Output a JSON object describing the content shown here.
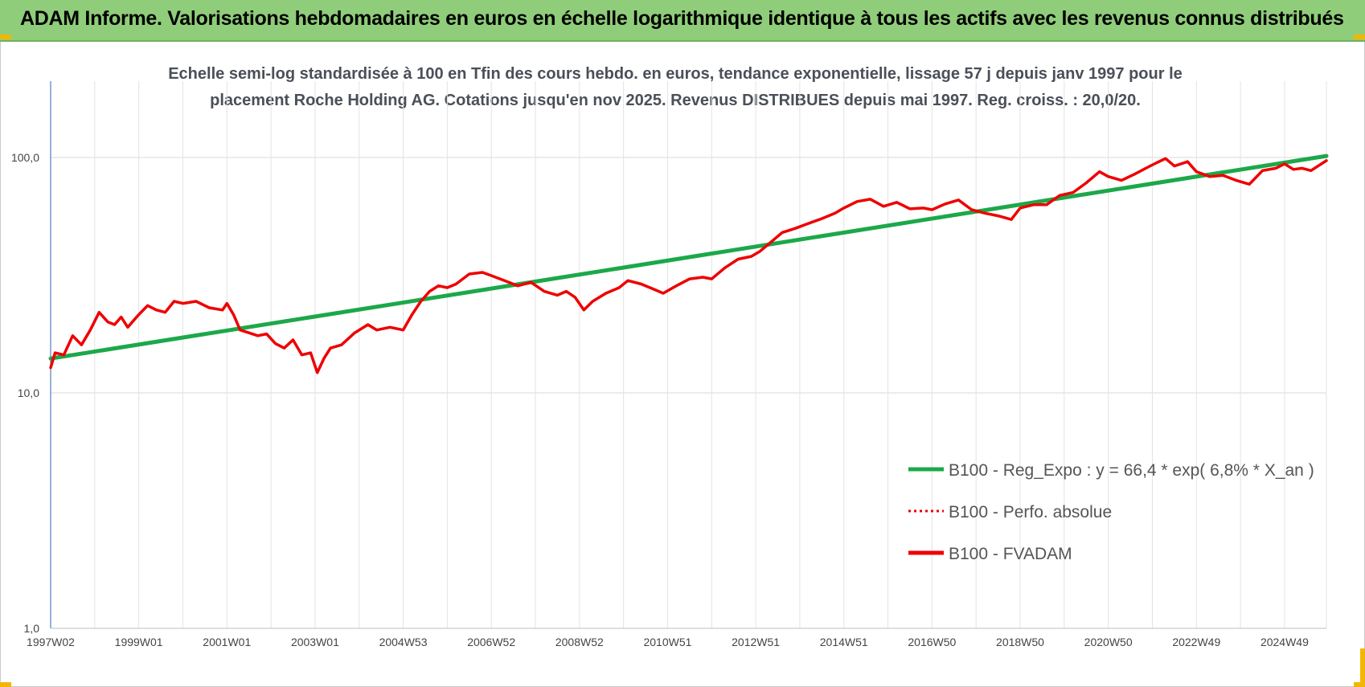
{
  "banner": {
    "title": "ADAM Informe. Valorisations hebdomadaires en euros en échelle logarithmique identique à tous les actifs avec les revenus connus distribués"
  },
  "colors": {
    "banner_bg": "#8fcd7a",
    "accent": "#f2b705",
    "green": "#1ca84a",
    "red": "#ee0000"
  },
  "chart_data": {
    "type": "line",
    "title_lines": [
      "Echelle semi-log standardisée à 100 en Tfin des cours hebdo. en euros, tendance exponentielle, lissage 57 j depuis janv 1997 pour le",
      "placement Roche Holding AG. Cotations jusqu'en nov 2025. Revenus DISTRIBUES depuis mai 1997. Reg. croiss. : 20,0/20."
    ],
    "y_scale": "log",
    "ylim": [
      1,
      200
    ],
    "y_ticks": [
      {
        "value": 1,
        "label": "1,0"
      },
      {
        "value": 10,
        "label": "10,0"
      },
      {
        "value": 100,
        "label": "100,0"
      }
    ],
    "xlim": [
      1997.0,
      2025.95
    ],
    "x_ticks": [
      {
        "value": 1997.0,
        "label": "1997W02"
      },
      {
        "value": 1999.0,
        "label": "1999W01"
      },
      {
        "value": 2001.0,
        "label": "2001W01"
      },
      {
        "value": 2003.0,
        "label": "2003W01"
      },
      {
        "value": 2005.0,
        "label": "2004W53"
      },
      {
        "value": 2007.0,
        "label": "2006W52"
      },
      {
        "value": 2009.0,
        "label": "2008W52"
      },
      {
        "value": 2011.0,
        "label": "2010W51"
      },
      {
        "value": 2013.0,
        "label": "2012W51"
      },
      {
        "value": 2015.0,
        "label": "2014W51"
      },
      {
        "value": 2017.0,
        "label": "2016W50"
      },
      {
        "value": 2019.0,
        "label": "2018W50"
      },
      {
        "value": 2021.0,
        "label": "2020W50"
      },
      {
        "value": 2023.0,
        "label": "2022W49"
      },
      {
        "value": 2025.0,
        "label": "2024W49"
      }
    ],
    "grid": true,
    "legend_position": "right",
    "series": [
      {
        "name": "B100 - Reg_Expo : y = 66,4 * exp( 6,8% *  X_an )",
        "color": "#1ca84a",
        "style": "solid",
        "x": [
          1997.0,
          2025.95
        ],
        "y": [
          14.0,
          101.5
        ]
      },
      {
        "name": "B100 - Perfo. absolue",
        "color": "#ee0000",
        "style": "dotted",
        "x": [],
        "y": []
      },
      {
        "name": "B100 - FVADAM",
        "color": "#ee0000",
        "style": "solid",
        "x": [
          1997.0,
          1997.1,
          1997.3,
          1997.5,
          1997.7,
          1997.9,
          1998.1,
          1998.3,
          1998.45,
          1998.6,
          1998.75,
          1998.9,
          1999.0,
          1999.2,
          1999.4,
          1999.6,
          1999.8,
          2000.0,
          2000.3,
          2000.6,
          2000.9,
          2001.0,
          2001.15,
          2001.3,
          2001.5,
          2001.7,
          2001.9,
          2002.1,
          2002.3,
          2002.5,
          2002.7,
          2002.9,
          2003.05,
          2003.2,
          2003.35,
          2003.6,
          2003.9,
          2004.2,
          2004.4,
          2004.7,
          2005.0,
          2005.2,
          2005.4,
          2005.6,
          2005.8,
          2006.0,
          2006.2,
          2006.5,
          2006.8,
          2007.0,
          2007.3,
          2007.6,
          2007.9,
          2008.2,
          2008.5,
          2008.7,
          2008.9,
          2009.1,
          2009.3,
          2009.6,
          2009.9,
          2010.1,
          2010.4,
          2010.7,
          2010.9,
          2011.2,
          2011.5,
          2011.8,
          2012.0,
          2012.3,
          2012.6,
          2012.9,
          2013.1,
          2013.3,
          2013.6,
          2013.9,
          2014.2,
          2014.5,
          2014.8,
          2015.0,
          2015.3,
          2015.6,
          2015.9,
          2016.2,
          2016.5,
          2016.8,
          2017.0,
          2017.3,
          2017.6,
          2017.9,
          2018.2,
          2018.5,
          2018.8,
          2019.0,
          2019.3,
          2019.6,
          2019.9,
          2020.2,
          2020.5,
          2020.8,
          2021.0,
          2021.3,
          2021.6,
          2021.9,
          2022.1,
          2022.3,
          2022.5,
          2022.8,
          2023.0,
          2023.3,
          2023.6,
          2023.9,
          2024.2,
          2024.5,
          2024.8,
          2025.0,
          2025.2,
          2025.4,
          2025.6,
          2025.8,
          2025.95
        ],
        "y": [
          12.8,
          14.8,
          14.5,
          17.5,
          16.0,
          18.5,
          22.0,
          20.0,
          19.5,
          21.0,
          19.0,
          20.5,
          21.5,
          23.5,
          22.5,
          22.0,
          24.5,
          24.0,
          24.5,
          23.0,
          22.5,
          24.0,
          21.5,
          18.5,
          18.0,
          17.5,
          17.8,
          16.2,
          15.5,
          16.8,
          14.5,
          14.8,
          12.2,
          14.0,
          15.5,
          16.0,
          18.0,
          19.5,
          18.5,
          19.0,
          18.5,
          21.5,
          24.5,
          27.0,
          28.5,
          28.0,
          29.0,
          32.0,
          32.5,
          31.5,
          30.0,
          28.5,
          29.5,
          27.0,
          26.0,
          27.0,
          25.5,
          22.5,
          24.5,
          26.5,
          28.0,
          30.0,
          29.0,
          27.5,
          26.5,
          28.5,
          30.5,
          31.0,
          30.5,
          34.0,
          37.0,
          38.0,
          40.0,
          43.0,
          48.0,
          50.0,
          52.5,
          55.0,
          58.0,
          61.0,
          65.0,
          66.5,
          62.0,
          64.5,
          60.5,
          61.0,
          60.0,
          63.5,
          66.0,
          60.0,
          58.0,
          56.5,
          54.5,
          61.0,
          63.0,
          63.0,
          69.0,
          71.0,
          78.0,
          87.0,
          83.0,
          80.0,
          85.0,
          91.0,
          95.0,
          99.0,
          92.0,
          96.0,
          87.0,
          83.0,
          84.0,
          80.0,
          77.0,
          88.0,
          90.0,
          94.0,
          89.0,
          90.0,
          88.0,
          93.0,
          97.0
        ]
      }
    ]
  }
}
